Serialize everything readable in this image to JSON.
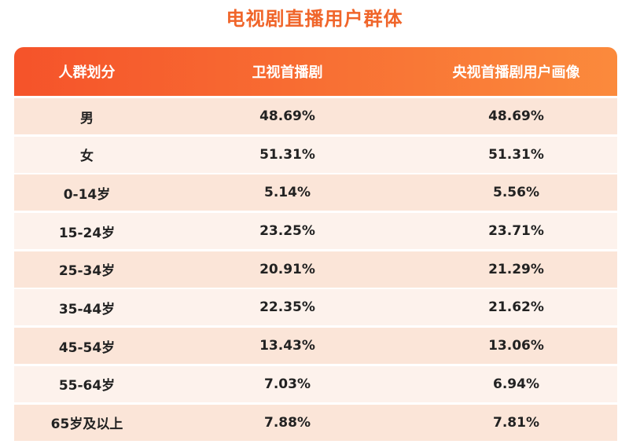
{
  "title": "电视剧直播用户群体",
  "table": {
    "header": [
      "人群划分",
      "卫视首播剧",
      "央视首播剧用户画像"
    ],
    "rows": [
      [
        "男",
        "48.69%",
        "48.69%"
      ],
      [
        "女",
        "51.31%",
        "51.31%"
      ],
      [
        "0-14岁",
        "5.14%",
        "5.56%"
      ],
      [
        "15-24岁",
        "23.25%",
        "23.71%"
      ],
      [
        "25-34岁",
        "20.91%",
        "21.29%"
      ],
      [
        "35-44岁",
        "22.35%",
        "21.62%"
      ],
      [
        "45-54岁",
        "13.43%",
        "13.06%"
      ],
      [
        "55-64岁",
        "7.03%",
        "6.94%"
      ],
      [
        "65岁及以上",
        "7.88%",
        "7.81%"
      ]
    ]
  }
}
